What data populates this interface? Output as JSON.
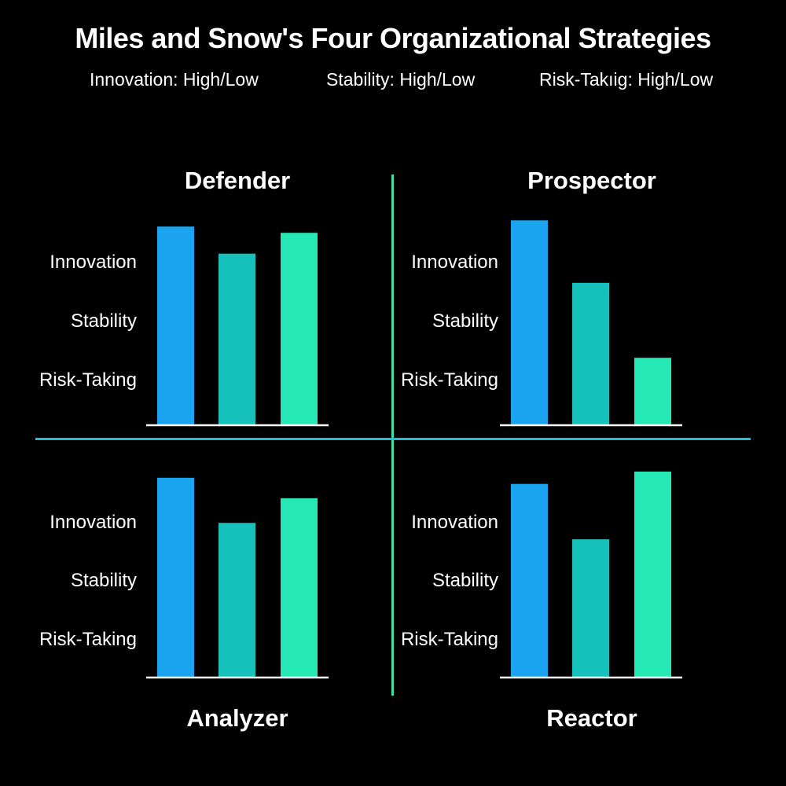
{
  "title": "Miles and Snow's Four Organizational Strategies",
  "legend": [
    "Innovation: High/Low",
    "Stability: High/Low",
    "Risk-Takıig: High/Low"
  ],
  "colors": {
    "innovation": "#1aa3ee",
    "stability": "#16c1bb",
    "risk": "#26e8b4",
    "axis": "#ffffff"
  },
  "chart_data": [
    {
      "type": "bar",
      "title": "Defender",
      "categories": [
        "Innovation",
        "Stability",
        "Risk-Taking"
      ],
      "values": [
        0.95,
        0.82,
        0.92
      ],
      "ylim": [
        0,
        1
      ]
    },
    {
      "type": "bar",
      "title": "Prospector",
      "categories": [
        "Innovation",
        "Stability",
        "Risk-Taking"
      ],
      "values": [
        0.98,
        0.68,
        0.32
      ],
      "ylim": [
        0,
        1
      ]
    },
    {
      "type": "bar",
      "title": "Analyzer",
      "categories": [
        "Innovation",
        "Stability",
        "Risk-Taking"
      ],
      "values": [
        0.97,
        0.75,
        0.87
      ],
      "ylim": [
        0,
        1
      ]
    },
    {
      "type": "bar",
      "title": "Reactor",
      "categories": [
        "Innovation",
        "Stability",
        "Risk-Taking"
      ],
      "values": [
        0.94,
        0.67,
        1.0
      ],
      "ylim": [
        0,
        1
      ]
    }
  ]
}
